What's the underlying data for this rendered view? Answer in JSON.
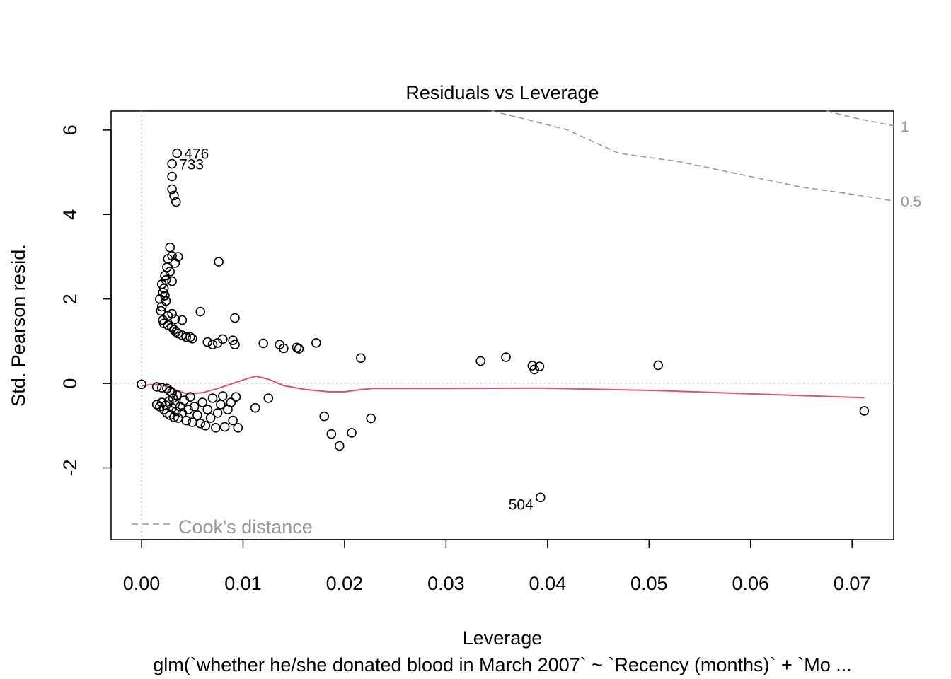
{
  "chart_data": {
    "type": "scatter",
    "title": "Residuals vs Leverage",
    "xlabel": "Leverage",
    "ylabel": "Std. Pearson resid.",
    "subtitle": "glm(`whether he/she donated blood in March 2007` ~ `Recency (months)` + `Mo ...",
    "xlim": [
      -0.003,
      0.0741
    ],
    "ylim": [
      -3.7,
      6.45
    ],
    "x_ticks": [
      0.0,
      0.01,
      0.02,
      0.03,
      0.04,
      0.05,
      0.06,
      0.07
    ],
    "x_tick_labels": [
      "0.00",
      "0.01",
      "0.02",
      "0.03",
      "0.04",
      "0.05",
      "0.06",
      "0.07"
    ],
    "y_ticks": [
      -2,
      0,
      2,
      4,
      6
    ],
    "y_tick_labels": [
      "-2",
      "0",
      "2",
      "4",
      "6"
    ],
    "grid": false,
    "legend": {
      "label": "Cook's distance",
      "position": "bottom-left"
    },
    "colors": {
      "points": "#000000",
      "smooth": "#DF536B",
      "cooks": "#999999",
      "reference": "#BEBEBE"
    },
    "points": [
      [
        0.0035,
        5.45
      ],
      [
        0.003,
        5.2
      ],
      [
        0.003,
        4.9
      ],
      [
        0.003,
        4.6
      ],
      [
        0.0032,
        4.45
      ],
      [
        0.0034,
        4.3
      ],
      [
        0.0028,
        3.22
      ],
      [
        0.003,
        3.02
      ],
      [
        0.0036,
        3.0
      ],
      [
        0.0026,
        2.95
      ],
      [
        0.0033,
        2.85
      ],
      [
        0.0025,
        2.75
      ],
      [
        0.0028,
        2.65
      ],
      [
        0.0023,
        2.55
      ],
      [
        0.0024,
        2.45
      ],
      [
        0.003,
        2.42
      ],
      [
        0.002,
        2.35
      ],
      [
        0.0022,
        2.25
      ],
      [
        0.0021,
        2.15
      ],
      [
        0.0023,
        2.08
      ],
      [
        0.0018,
        2.0
      ],
      [
        0.0024,
        1.95
      ],
      [
        0.002,
        1.82
      ],
      [
        0.0019,
        1.72
      ],
      [
        0.003,
        1.65
      ],
      [
        0.0026,
        1.6
      ],
      [
        0.0033,
        1.52
      ],
      [
        0.0021,
        1.5
      ],
      [
        0.004,
        1.5
      ],
      [
        0.0022,
        1.42
      ],
      [
        0.0026,
        1.38
      ],
      [
        0.003,
        1.33
      ],
      [
        0.0032,
        1.27
      ],
      [
        0.0034,
        1.22
      ],
      [
        0.0036,
        1.18
      ],
      [
        0.004,
        1.14
      ],
      [
        0.0044,
        1.1
      ],
      [
        0.0048,
        1.1
      ],
      [
        0.005,
        1.06
      ],
      [
        0.0058,
        1.7
      ],
      [
        0.0076,
        2.88
      ],
      [
        0.0092,
        1.55
      ],
      [
        0.0065,
        0.98
      ],
      [
        0.007,
        0.92
      ],
      [
        0.0075,
        0.96
      ],
      [
        0.008,
        1.05
      ],
      [
        0.009,
        1.02
      ],
      [
        0.0092,
        0.92
      ],
      [
        0.012,
        0.95
      ],
      [
        0.0136,
        0.92
      ],
      [
        0.014,
        0.83
      ],
      [
        0.0153,
        0.85
      ],
      [
        0.0155,
        0.82
      ],
      [
        0.0172,
        0.96
      ],
      [
        0.0216,
        0.6
      ],
      [
        0.0334,
        0.53
      ],
      [
        0.0359,
        0.62
      ],
      [
        0.0385,
        0.42
      ],
      [
        0.0387,
        0.33
      ],
      [
        0.0392,
        0.4
      ],
      [
        0.0509,
        0.43
      ],
      [
        0.0,
        -0.02
      ],
      [
        0.0015,
        -0.08
      ],
      [
        0.002,
        -0.1
      ],
      [
        0.0025,
        -0.12
      ],
      [
        0.0028,
        -0.18
      ],
      [
        0.003,
        -0.22
      ],
      [
        0.0015,
        -0.5
      ],
      [
        0.0018,
        -0.55
      ],
      [
        0.002,
        -0.45
      ],
      [
        0.0022,
        -0.62
      ],
      [
        0.0024,
        -0.52
      ],
      [
        0.0025,
        -0.7
      ],
      [
        0.0027,
        -0.42
      ],
      [
        0.0028,
        -0.75
      ],
      [
        0.003,
        -0.58
      ],
      [
        0.0031,
        -0.35
      ],
      [
        0.0032,
        -0.8
      ],
      [
        0.0033,
        -0.48
      ],
      [
        0.0034,
        -0.66
      ],
      [
        0.0035,
        -0.28
      ],
      [
        0.0036,
        -0.82
      ],
      [
        0.0038,
        -0.55
      ],
      [
        0.004,
        -0.7
      ],
      [
        0.0042,
        -0.4
      ],
      [
        0.0044,
        -0.88
      ],
      [
        0.0046,
        -0.62
      ],
      [
        0.0048,
        -0.32
      ],
      [
        0.005,
        -0.92
      ],
      [
        0.0052,
        -0.55
      ],
      [
        0.0055,
        -0.75
      ],
      [
        0.0058,
        -0.95
      ],
      [
        0.006,
        -0.45
      ],
      [
        0.0063,
        -1.0
      ],
      [
        0.0065,
        -0.62
      ],
      [
        0.0068,
        -0.82
      ],
      [
        0.007,
        -0.35
      ],
      [
        0.0073,
        -1.05
      ],
      [
        0.0075,
        -0.7
      ],
      [
        0.0078,
        -0.5
      ],
      [
        0.008,
        -0.3
      ],
      [
        0.0082,
        -1.03
      ],
      [
        0.0085,
        -0.62
      ],
      [
        0.0088,
        -0.45
      ],
      [
        0.009,
        -0.88
      ],
      [
        0.0095,
        -1.05
      ],
      [
        0.0093,
        -0.32
      ],
      [
        0.0112,
        -0.58
      ],
      [
        0.0125,
        -0.35
      ],
      [
        0.018,
        -0.78
      ],
      [
        0.0187,
        -1.2
      ],
      [
        0.0195,
        -1.48
      ],
      [
        0.0207,
        -1.17
      ],
      [
        0.0226,
        -0.83
      ],
      [
        0.0393,
        -2.7
      ],
      [
        0.0712,
        -0.65
      ]
    ],
    "labels": [
      {
        "text": "476",
        "x": 0.0035,
        "y": 5.45
      },
      {
        "text": "733",
        "x": 0.003,
        "y": 5.2
      },
      {
        "text": "504",
        "x": 0.0393,
        "y": -2.7
      }
    ],
    "smooth": [
      [
        0.0,
        -0.05
      ],
      [
        0.0015,
        -0.02
      ],
      [
        0.0025,
        -0.06
      ],
      [
        0.0035,
        -0.17
      ],
      [
        0.0045,
        -0.25
      ],
      [
        0.006,
        -0.22
      ],
      [
        0.0075,
        -0.12
      ],
      [
        0.009,
        0.0
      ],
      [
        0.0105,
        0.12
      ],
      [
        0.0113,
        0.17
      ],
      [
        0.0125,
        0.1
      ],
      [
        0.014,
        -0.05
      ],
      [
        0.016,
        -0.14
      ],
      [
        0.0185,
        -0.2
      ],
      [
        0.02,
        -0.2
      ],
      [
        0.0215,
        -0.15
      ],
      [
        0.0228,
        -0.12
      ],
      [
        0.03,
        -0.12
      ],
      [
        0.0393,
        -0.11
      ],
      [
        0.0509,
        -0.17
      ],
      [
        0.0712,
        -0.34
      ]
    ],
    "cooks_contours": [
      {
        "label": "1",
        "points": [
          [
            0.0675,
            6.45
          ],
          [
            0.07,
            6.3
          ],
          [
            0.0741,
            6.1
          ]
        ]
      },
      {
        "label": "0.5",
        "points": [
          [
            0.0345,
            6.45
          ],
          [
            0.038,
            6.25
          ],
          [
            0.042,
            6.0
          ],
          [
            0.047,
            5.45
          ],
          [
            0.053,
            5.25
          ],
          [
            0.059,
            4.95
          ],
          [
            0.065,
            4.65
          ],
          [
            0.07,
            4.48
          ],
          [
            0.0741,
            4.32
          ]
        ]
      }
    ]
  }
}
